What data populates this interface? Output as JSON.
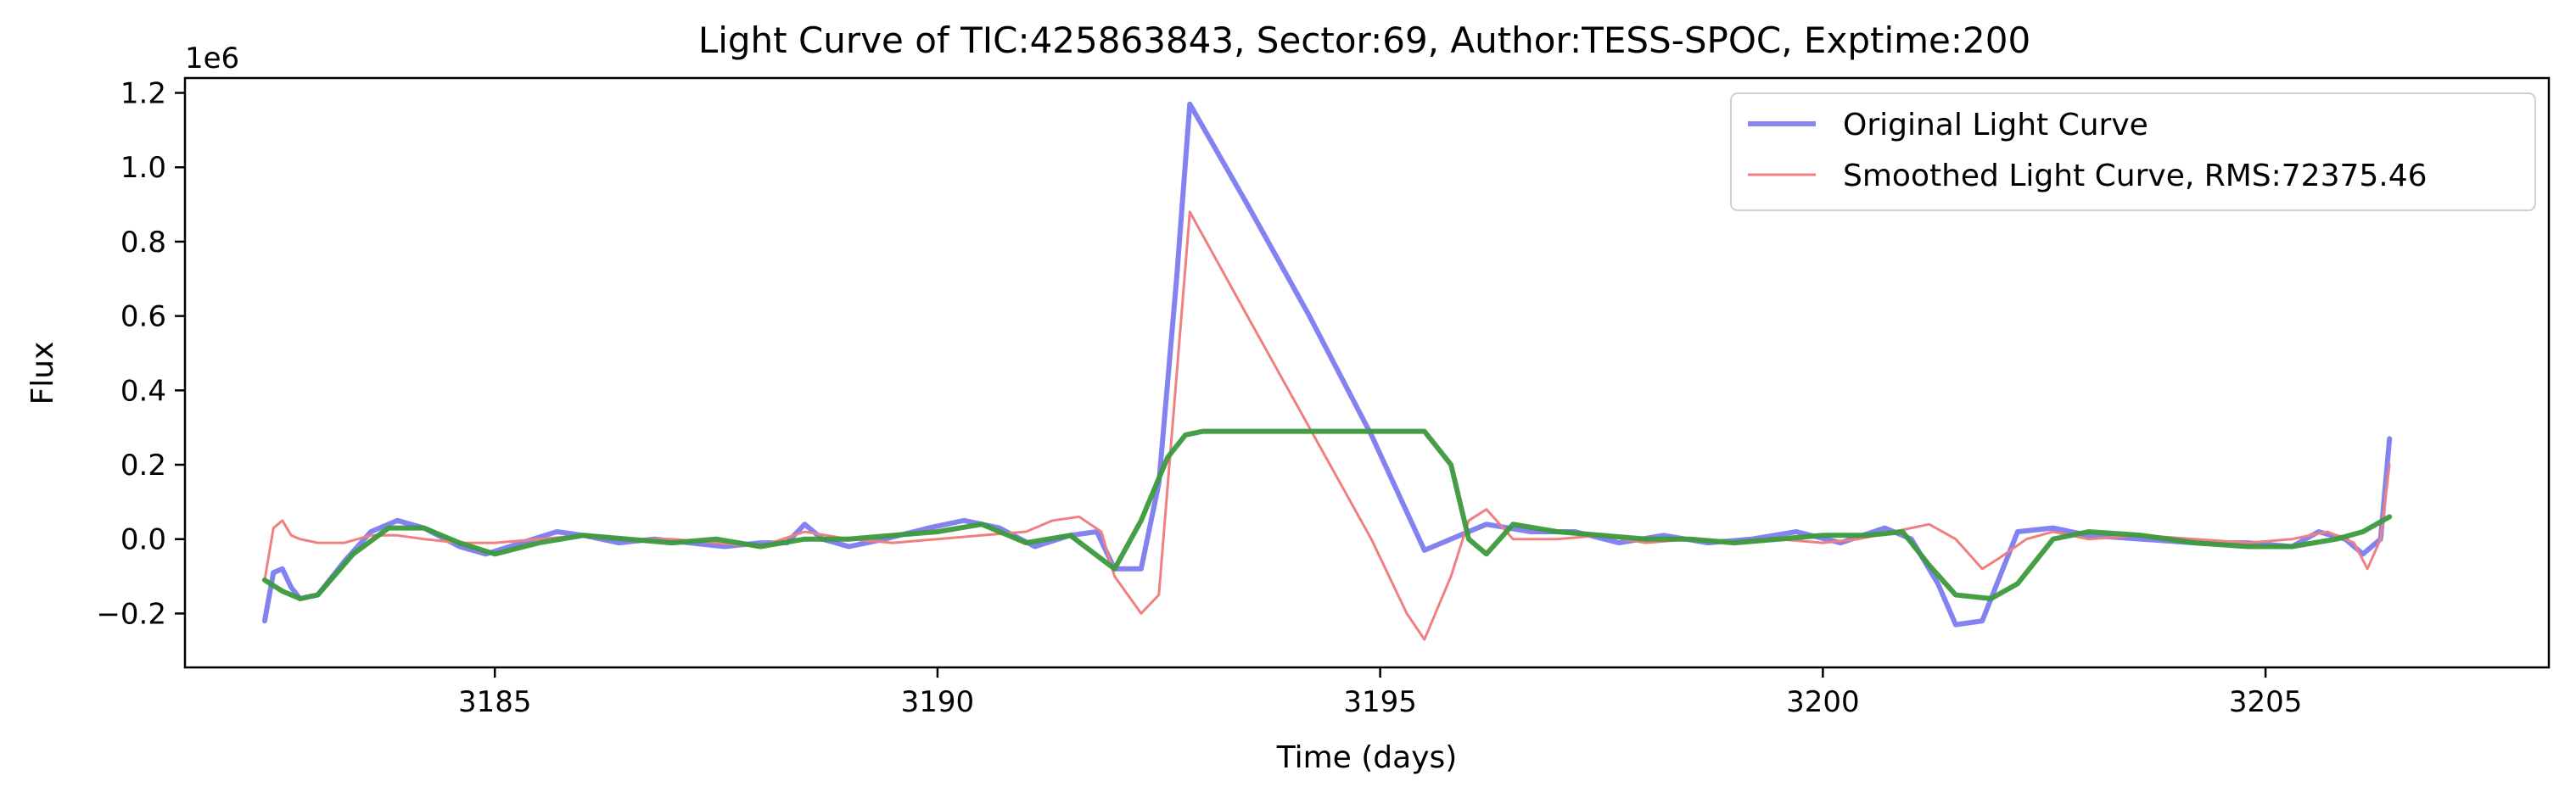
{
  "chart_data": {
    "type": "line",
    "title": "Light Curve of TIC:425863843, Sector:69, Author:TESS-SPOC, Exptime:200",
    "xlabel": "Time (days)",
    "ylabel": "Flux",
    "y_offset_label": "1e6",
    "xlim": [
      3181.5,
      3208.2
    ],
    "ylim": [
      -0.345,
      1.24
    ],
    "y_scale_factor": 1000000,
    "xticks": [
      3185,
      3190,
      3195,
      3200,
      3205
    ],
    "yticks": [
      -0.2,
      0.0,
      0.2,
      0.4,
      0.6,
      0.8,
      1.0,
      1.2
    ],
    "grid": false,
    "legend_position": "top-right",
    "series": [
      {
        "name": "Original Light Curve",
        "color": "#7b7bf0",
        "x": [
          3182.4,
          3182.5,
          3182.6,
          3182.7,
          3182.8,
          3183.0,
          3183.3,
          3183.6,
          3183.9,
          3184.2,
          3184.6,
          3184.9,
          3185.3,
          3185.7,
          3186.0,
          3186.4,
          3186.8,
          3187.2,
          3187.6,
          3188.0,
          3188.3,
          3188.5,
          3188.7,
          3189.0,
          3189.4,
          3189.9,
          3190.3,
          3190.7,
          3191.1,
          3191.5,
          3191.8,
          3192.0,
          3192.3,
          3192.5,
          3192.7,
          3192.85,
          3193.5,
          3194.2,
          3194.9,
          3195.5,
          3195.8,
          3196.2,
          3196.7,
          3197.2,
          3197.7,
          3198.2,
          3198.7,
          3199.2,
          3199.7,
          3200.2,
          3200.7,
          3201.0,
          3201.3,
          3201.5,
          3201.8,
          3202.2,
          3202.6,
          3203.0,
          3203.6,
          3204.2,
          3204.8,
          3205.3,
          3205.6,
          3205.9,
          3206.1,
          3206.3,
          3206.4
        ],
        "y": [
          -0.22,
          -0.09,
          -0.08,
          -0.13,
          -0.16,
          -0.15,
          -0.06,
          0.02,
          0.05,
          0.03,
          -0.02,
          -0.04,
          -0.01,
          0.02,
          0.01,
          -0.01,
          0.0,
          -0.01,
          -0.02,
          -0.01,
          -0.01,
          0.04,
          0.0,
          -0.02,
          0.0,
          0.03,
          0.05,
          0.03,
          -0.02,
          0.01,
          0.02,
          -0.08,
          -0.08,
          0.15,
          0.7,
          1.17,
          0.9,
          0.6,
          0.28,
          -0.03,
          0.0,
          0.04,
          0.02,
          0.02,
          -0.01,
          0.01,
          -0.01,
          0.0,
          0.02,
          -0.01,
          0.03,
          0.0,
          -0.12,
          -0.23,
          -0.22,
          0.02,
          0.03,
          0.01,
          0.0,
          -0.01,
          -0.01,
          -0.02,
          0.02,
          0.0,
          -0.04,
          0.0,
          0.27
        ]
      },
      {
        "name": "Smoothed Light Curve, RMS:72375.46",
        "color": "#f08080",
        "x": [
          3182.4,
          3182.5,
          3182.6,
          3182.7,
          3182.8,
          3183.0,
          3183.3,
          3183.6,
          3183.9,
          3184.2,
          3184.6,
          3185.0,
          3185.5,
          3186.0,
          3186.5,
          3187.0,
          3187.5,
          3188.0,
          3188.5,
          3189.0,
          3189.5,
          3190.0,
          3190.5,
          3191.0,
          3191.3,
          3191.6,
          3191.85,
          3192.0,
          3192.3,
          3192.5,
          3192.85,
          3193.5,
          3194.2,
          3194.9,
          3195.3,
          3195.5,
          3195.8,
          3196.0,
          3196.2,
          3196.5,
          3197.0,
          3197.5,
          3198.0,
          3198.5,
          3199.0,
          3199.5,
          3200.0,
          3200.4,
          3200.8,
          3201.2,
          3201.5,
          3201.8,
          3202.0,
          3202.3,
          3202.6,
          3203.0,
          3203.6,
          3204.2,
          3204.8,
          3205.3,
          3205.7,
          3206.0,
          3206.15,
          3206.3,
          3206.4
        ],
        "y": [
          -0.11,
          0.03,
          0.05,
          0.01,
          0.0,
          -0.01,
          -0.01,
          0.01,
          0.01,
          0.0,
          -0.01,
          -0.01,
          0.0,
          0.01,
          0.0,
          0.0,
          -0.01,
          -0.02,
          0.02,
          0.0,
          -0.01,
          0.0,
          0.01,
          0.02,
          0.05,
          0.06,
          0.02,
          -0.1,
          -0.2,
          -0.15,
          0.88,
          0.6,
          0.3,
          0.0,
          -0.2,
          -0.27,
          -0.1,
          0.05,
          0.08,
          0.0,
          0.0,
          0.01,
          -0.01,
          0.0,
          -0.01,
          0.0,
          -0.01,
          0.0,
          0.02,
          0.04,
          0.0,
          -0.08,
          -0.05,
          0.0,
          0.02,
          0.0,
          0.01,
          0.0,
          -0.01,
          0.0,
          0.02,
          -0.01,
          -0.08,
          0.0,
          0.2
        ]
      },
      {
        "name": "",
        "color": "#3c9a3c",
        "x": [
          3182.4,
          3182.6,
          3182.8,
          3183.0,
          3183.4,
          3183.8,
          3184.2,
          3184.6,
          3185.0,
          3185.5,
          3186.0,
          3186.5,
          3187.0,
          3187.5,
          3188.0,
          3188.5,
          3189.0,
          3189.5,
          3190.0,
          3190.5,
          3191.0,
          3191.5,
          3192.0,
          3192.3,
          3192.6,
          3192.8,
          3193.0,
          3194.0,
          3195.0,
          3195.5,
          3195.8,
          3196.0,
          3196.2,
          3196.5,
          3197.0,
          3197.5,
          3198.0,
          3198.5,
          3199.0,
          3199.5,
          3200.0,
          3200.5,
          3200.9,
          3201.2,
          3201.5,
          3201.9,
          3202.2,
          3202.6,
          3203.0,
          3203.6,
          3204.2,
          3204.8,
          3205.3,
          3205.8,
          3206.1,
          3206.4
        ],
        "y": [
          -0.11,
          -0.14,
          -0.16,
          -0.15,
          -0.04,
          0.03,
          0.03,
          -0.01,
          -0.04,
          -0.01,
          0.01,
          0.0,
          -0.01,
          0.0,
          -0.02,
          0.0,
          0.0,
          0.01,
          0.02,
          0.04,
          -0.01,
          0.01,
          -0.08,
          0.05,
          0.22,
          0.28,
          0.29,
          0.29,
          0.29,
          0.29,
          0.2,
          0.0,
          -0.04,
          0.04,
          0.02,
          0.01,
          0.0,
          0.0,
          -0.01,
          0.0,
          0.01,
          0.01,
          0.02,
          -0.07,
          -0.15,
          -0.16,
          -0.12,
          0.0,
          0.02,
          0.01,
          -0.01,
          -0.02,
          -0.02,
          0.0,
          0.02,
          0.06
        ]
      }
    ]
  }
}
